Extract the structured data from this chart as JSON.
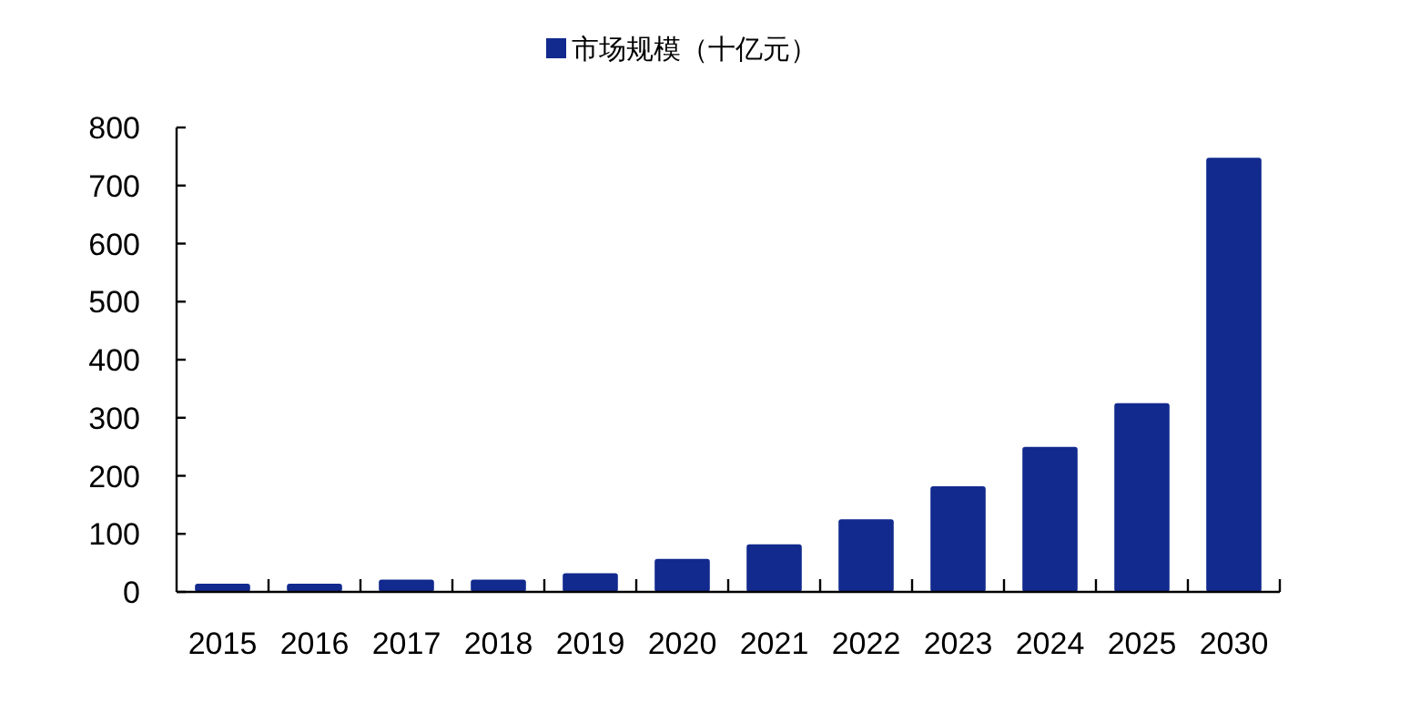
{
  "chart_data": {
    "type": "bar",
    "categories": [
      "2015",
      "2016",
      "2017",
      "2018",
      "2019",
      "2020",
      "2021",
      "2022",
      "2023",
      "2024",
      "2025",
      "2030"
    ],
    "series": [
      {
        "name": "市场规模（十亿元）",
        "color": "#122a8e",
        "values": [
          14,
          14,
          21,
          21,
          32,
          57,
          82,
          125,
          182,
          250,
          325,
          748
        ]
      }
    ],
    "ylim": [
      0,
      800
    ],
    "yticks": [
      0,
      100,
      200,
      300,
      400,
      500,
      600,
      700,
      800
    ],
    "legend": "top",
    "grid": false
  }
}
